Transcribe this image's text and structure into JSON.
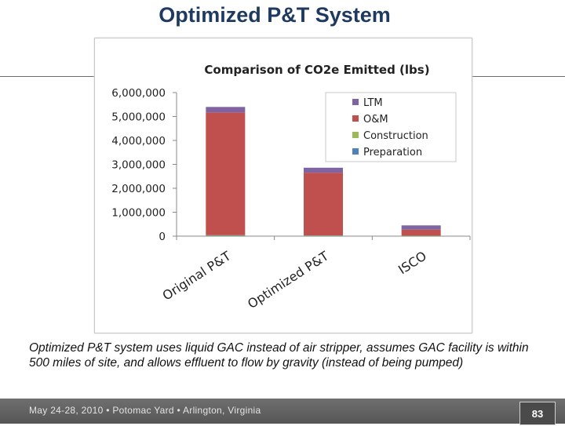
{
  "slide": {
    "title": "Optimized P&T System",
    "caption": "Optimized P&T system uses liquid GAC instead of air stripper, assumes GAC facility is within 500 miles of site, and allows effluent to flow by gravity (instead of being pumped)",
    "footer": "May 24-28, 2010 • Potomac Yard • Arlington, Virginia",
    "page_number": "83"
  },
  "chart_data": {
    "type": "bar",
    "stacked": true,
    "title": "Comparison of CO2e Emitted (lbs)",
    "xlabel": "",
    "ylabel": "",
    "categories": [
      "Original P&T",
      "Optimized P&T",
      "ISCO"
    ],
    "series": [
      {
        "name": "Preparation",
        "color": "#4f81bd",
        "values": [
          15000,
          10000,
          5000
        ]
      },
      {
        "name": "Construction",
        "color": "#9bbb59",
        "values": [
          25000,
          20000,
          10000
        ]
      },
      {
        "name": "O&M",
        "color": "#c0504d",
        "values": [
          5130000,
          2620000,
          255000
        ]
      },
      {
        "name": "LTM",
        "color": "#8064a2",
        "values": [
          230000,
          210000,
          180000
        ]
      }
    ],
    "ylim": [
      0,
      6000000
    ],
    "yticks": [
      0,
      1000000,
      2000000,
      3000000,
      4000000,
      5000000,
      6000000
    ],
    "ytick_labels": [
      "0",
      "1,000,000",
      "2,000,000",
      "3,000,000",
      "4,000,000",
      "5,000,000",
      "6,000,000"
    ],
    "legend_order": [
      "LTM",
      "O&M",
      "Construction",
      "Preparation"
    ],
    "legend_position": "top-right",
    "grid": false
  }
}
